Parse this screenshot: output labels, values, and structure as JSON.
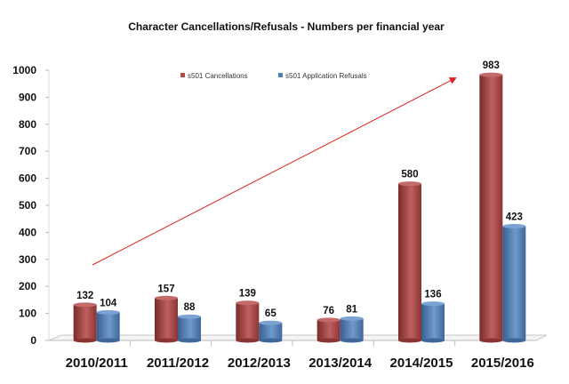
{
  "chart_data": {
    "type": "bar",
    "title": "Character Cancellations/Refusals - Numbers per financial year",
    "categories": [
      "2010/2011",
      "2011/2012",
      "2012/2013",
      "2013/2014",
      "2014/2015",
      "2015/2016"
    ],
    "series": [
      {
        "name": "s501 Cancellations",
        "values": [
          132,
          157,
          139,
          76,
          580,
          983
        ],
        "color": "#b04a4a"
      },
      {
        "name": "s501 Application Refusals",
        "values": [
          104,
          88,
          65,
          81,
          136,
          423
        ],
        "color": "#4f7fb8"
      }
    ],
    "ylim": [
      0,
      1000
    ],
    "yticks": [
      0,
      100,
      200,
      300,
      400,
      500,
      600,
      700,
      800,
      900,
      1000
    ],
    "grid": false,
    "legend": "top-center",
    "annotation": {
      "type": "arrow",
      "color": "#e02020",
      "description": "upward trend arrow"
    },
    "xlabel": "",
    "ylabel": ""
  }
}
